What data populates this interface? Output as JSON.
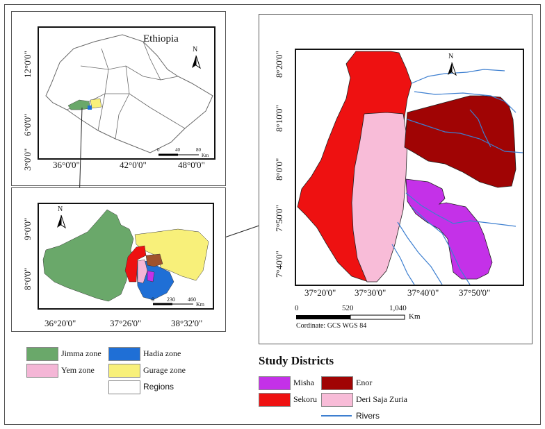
{
  "ethiopia_map": {
    "country_label": "Ethiopia",
    "x_ticks": [
      "36°0'0\"",
      "42°0'0\"",
      "48°0'0\""
    ],
    "y_ticks": [
      "12°0'0\"",
      "6°0'0\"",
      "3°0'0\""
    ],
    "scale_ticks": [
      "0",
      "40",
      "80"
    ],
    "scale_unit": "Km"
  },
  "zone_map": {
    "x_ticks": [
      "36°20'0\"",
      "37°26'0\"",
      "38°32'0\""
    ],
    "y_ticks": [
      "9°0'0\"",
      "8°0'0\""
    ],
    "scale_ticks": [
      "0",
      "230",
      "460"
    ],
    "scale_unit": "Km"
  },
  "district_map": {
    "x_ticks": [
      "37°20'0\"",
      "37°30'0\"",
      "37°40'0\"",
      "37°50'0\""
    ],
    "y_ticks": [
      "8°20'0\"",
      "8°10'0\"",
      "8°0'0\"",
      "7°50'0\"",
      "7°40'0\""
    ],
    "scale_ticks": [
      "0",
      "520",
      "1,040"
    ],
    "scale_unit": "Km",
    "coordinate_note": "Cordinate: GCS WGS 84"
  },
  "north_label": "N",
  "zone_legend": {
    "items": [
      {
        "label": "Jimma zone",
        "color": "#6aa86a"
      },
      {
        "label": "Hadia zone",
        "color": "#1f6fd6"
      },
      {
        "label": "Yem zone",
        "color": "#f4b6d6"
      },
      {
        "label": "Gurage zone",
        "color": "#f8f07a"
      },
      {
        "label": "Regions",
        "color": "#ffffff"
      }
    ]
  },
  "district_legend": {
    "title": "Study Districts",
    "items": [
      {
        "label": "Misha",
        "color": "#c431e8"
      },
      {
        "label": "Enor",
        "color": "#a00404"
      },
      {
        "label": "Sekoru",
        "color": "#ee1111"
      },
      {
        "label": "Deri Saja Zuria",
        "color": "#f8bcd8"
      },
      {
        "label": "Rivers",
        "color": "#3d7fd0"
      }
    ]
  }
}
